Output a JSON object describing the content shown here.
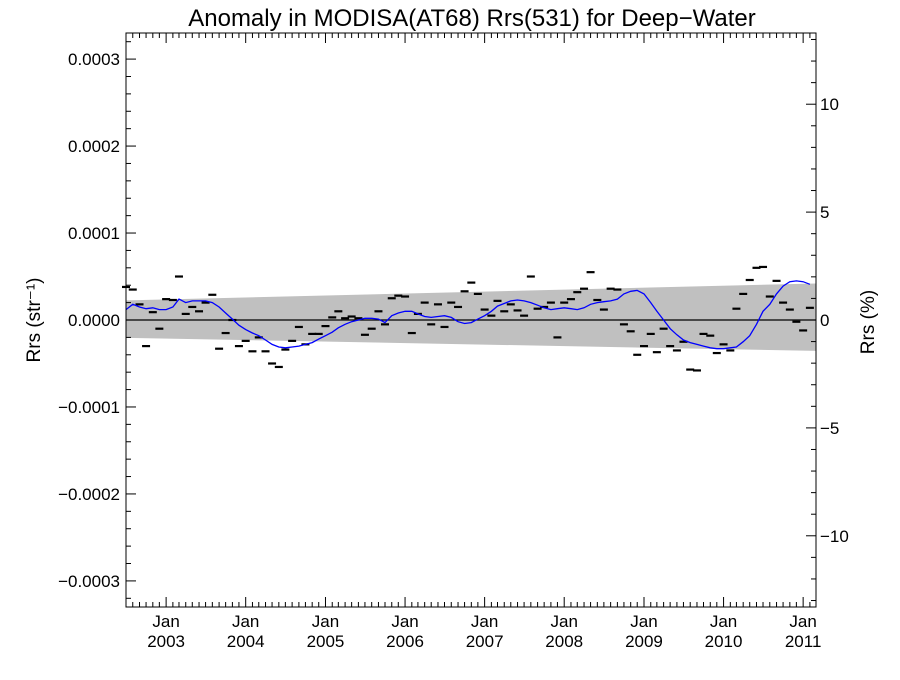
{
  "chart_data": {
    "type": "line",
    "title": "Anomaly in MODISA(AT68) Rrs(531) for Deep−Water",
    "ylabel_left": "Rrs (str⁻¹)",
    "ylabel_right": "Rrs (%)",
    "xlim": [
      "2002-07-01",
      "2011-03-01"
    ],
    "ylim_left": [
      -0.00033,
      0.00033
    ],
    "ylim_right": [
      -13.3,
      13.3
    ],
    "x_ticks": [
      {
        "month": "Jan",
        "year": "2003",
        "date": "2003-01-01"
      },
      {
        "month": "Jan",
        "year": "2004",
        "date": "2004-01-01"
      },
      {
        "month": "Jan",
        "year": "2005",
        "date": "2005-01-01"
      },
      {
        "month": "Jan",
        "year": "2006",
        "date": "2006-01-01"
      },
      {
        "month": "Jan",
        "year": "2007",
        "date": "2007-01-01"
      },
      {
        "month": "Jan",
        "year": "2008",
        "date": "2008-01-01"
      },
      {
        "month": "Jan",
        "year": "2009",
        "date": "2009-01-01"
      },
      {
        "month": "Jan",
        "year": "2010",
        "date": "2010-01-01"
      },
      {
        "month": "Jan",
        "year": "2011",
        "date": "2011-01-01"
      }
    ],
    "y_ticks_left": [
      {
        "value": 0.0003,
        "label": "0.0003"
      },
      {
        "value": 0.0002,
        "label": "0.0002"
      },
      {
        "value": 0.0001,
        "label": "0.0001"
      },
      {
        "value": 0.0,
        "label": "0.0000"
      },
      {
        "value": -0.0001,
        "label": "−0.0001"
      },
      {
        "value": -0.0002,
        "label": "−0.0002"
      },
      {
        "value": -0.0003,
        "label": "−0.0003"
      }
    ],
    "y_ticks_right": [
      {
        "value": 10,
        "label": "10"
      },
      {
        "value": 5,
        "label": "5"
      },
      {
        "value": 0,
        "label": "0"
      },
      {
        "value": -5,
        "label": "−5"
      },
      {
        "value": -10,
        "label": "−10"
      }
    ],
    "band": {
      "color": "#c0c0c0",
      "x": [
        "2002-07-01",
        "2011-03-01"
      ],
      "upper": [
        2.25e-05,
        4.2e-05
      ],
      "lower": [
        -2.05e-05,
        -3.55e-05
      ]
    },
    "zero_line": 0,
    "points": {
      "color": "#000000",
      "marker": "dash",
      "x": [
        "2002-07-01",
        "2002-08-01",
        "2002-09-01",
        "2002-10-01",
        "2002-11-01",
        "2002-12-01",
        "2003-01-01",
        "2003-02-01",
        "2003-03-01",
        "2003-04-01",
        "2003-05-01",
        "2003-06-01",
        "2003-07-01",
        "2003-08-01",
        "2003-09-01",
        "2003-10-01",
        "2003-11-01",
        "2003-12-01",
        "2004-01-01",
        "2004-02-01",
        "2004-03-01",
        "2004-04-01",
        "2004-05-01",
        "2004-06-01",
        "2004-07-01",
        "2004-08-01",
        "2004-09-01",
        "2004-10-01",
        "2004-11-01",
        "2004-12-01",
        "2005-01-01",
        "2005-02-01",
        "2005-03-01",
        "2005-04-01",
        "2005-05-01",
        "2005-06-01",
        "2005-07-01",
        "2005-08-01",
        "2005-09-01",
        "2005-10-01",
        "2005-11-01",
        "2005-12-01",
        "2006-01-01",
        "2006-02-01",
        "2006-03-01",
        "2006-04-01",
        "2006-05-01",
        "2006-06-01",
        "2006-07-01",
        "2006-08-01",
        "2006-09-01",
        "2006-10-01",
        "2006-11-01",
        "2006-12-01",
        "2007-01-01",
        "2007-02-01",
        "2007-03-01",
        "2007-04-01",
        "2007-05-01",
        "2007-06-01",
        "2007-07-01",
        "2007-08-01",
        "2007-09-01",
        "2007-10-01",
        "2007-11-01",
        "2007-12-01",
        "2008-01-01",
        "2008-02-01",
        "2008-03-01",
        "2008-04-01",
        "2008-05-01",
        "2008-06-01",
        "2008-07-01",
        "2008-08-01",
        "2008-09-01",
        "2008-10-01",
        "2008-11-01",
        "2008-12-01",
        "2009-01-01",
        "2009-02-01",
        "2009-03-01",
        "2009-04-01",
        "2009-05-01",
        "2009-06-01",
        "2009-07-01",
        "2009-08-01",
        "2009-09-01",
        "2009-10-01",
        "2009-11-01",
        "2009-12-01",
        "2010-01-01",
        "2010-02-01",
        "2010-03-01",
        "2010-04-01",
        "2010-05-01",
        "2010-06-01",
        "2010-07-01",
        "2010-08-01",
        "2010-09-01",
        "2010-10-01",
        "2010-11-01",
        "2010-12-01",
        "2011-01-01",
        "2011-02-01"
      ],
      "y": [
        3.8e-05,
        3.5e-05,
        1.8e-05,
        -3e-05,
        9e-06,
        -1e-05,
        2.4e-05,
        2.3e-05,
        5e-05,
        7e-06,
        1.5e-05,
        1e-05,
        2e-05,
        2.9e-05,
        -3.3e-05,
        -1.5e-05,
        0.0,
        -3e-05,
        -2.4e-05,
        -3.6e-05,
        -2e-05,
        -3.6e-05,
        -5e-05,
        -5.4e-05,
        -3.4e-05,
        -2.4e-05,
        -8e-06,
        -2.8e-05,
        -1.6e-05,
        -1.6e-05,
        -7e-06,
        3e-06,
        1e-05,
        2e-06,
        4e-06,
        2e-06,
        -1.7e-05,
        -1e-05,
        1e-05,
        -5e-06,
        2.5e-05,
        2.8e-05,
        2.7e-05,
        -1.5e-05,
        7e-06,
        2e-05,
        -5e-06,
        1.8e-05,
        -8e-06,
        2e-05,
        1.5e-05,
        3.3e-05,
        4.3e-05,
        3e-05,
        1.2e-05,
        5e-06,
        2.2e-05,
        1e-05,
        1.8e-05,
        1.1e-05,
        5e-06,
        5e-05,
        1.3e-05,
        1.5e-05,
        2e-05,
        -2e-05,
        2e-05,
        2.4e-05,
        3.2e-05,
        3.6e-05,
        5.5e-05,
        2.3e-05,
        1.2e-05,
        3.6e-05,
        3.5e-05,
        -5e-06,
        -1.3e-05,
        -4e-05,
        -3e-05,
        -1.6e-05,
        -3.7e-05,
        -1e-05,
        -3e-05,
        -3.5e-05,
        -2.5e-05,
        -5.7e-05,
        -5.8e-05,
        -1.6e-05,
        -1.8e-05,
        -3.8e-05,
        -2.8e-05,
        -3.5e-05,
        1.3e-05,
        3e-05,
        4.6e-05,
        6e-05,
        6.1e-05,
        2.7e-05,
        4.5e-05,
        2e-05,
        1.2e-05,
        -2e-06,
        -1.2e-05,
        1.4e-05
      ]
    },
    "series": [
      {
        "color": "#0000ff",
        "x": [
          "2002-07-01",
          "2002-08-01",
          "2002-09-01",
          "2002-10-01",
          "2002-11-01",
          "2002-12-01",
          "2003-01-01",
          "2003-02-01",
          "2003-03-01",
          "2003-04-01",
          "2003-05-01",
          "2003-06-01",
          "2003-07-01",
          "2003-08-01",
          "2003-09-01",
          "2003-10-01",
          "2003-11-01",
          "2003-12-01",
          "2004-01-01",
          "2004-02-01",
          "2004-03-01",
          "2004-04-01",
          "2004-05-01",
          "2004-06-01",
          "2004-07-01",
          "2004-08-01",
          "2004-09-01",
          "2004-10-01",
          "2004-11-01",
          "2004-12-01",
          "2005-01-01",
          "2005-02-01",
          "2005-03-01",
          "2005-04-01",
          "2005-05-01",
          "2005-06-01",
          "2005-07-01",
          "2005-08-01",
          "2005-09-01",
          "2005-10-01",
          "2005-11-01",
          "2005-12-01",
          "2006-01-01",
          "2006-02-01",
          "2006-03-01",
          "2006-04-01",
          "2006-05-01",
          "2006-06-01",
          "2006-07-01",
          "2006-08-01",
          "2006-09-01",
          "2006-10-01",
          "2006-11-01",
          "2006-12-01",
          "2007-01-01",
          "2007-02-01",
          "2007-03-01",
          "2007-04-01",
          "2007-05-01",
          "2007-06-01",
          "2007-07-01",
          "2007-08-01",
          "2007-09-01",
          "2007-10-01",
          "2007-11-01",
          "2007-12-01",
          "2008-01-01",
          "2008-02-01",
          "2008-03-01",
          "2008-04-01",
          "2008-05-01",
          "2008-06-01",
          "2008-07-01",
          "2008-08-01",
          "2008-09-01",
          "2008-10-01",
          "2008-11-01",
          "2008-12-01",
          "2009-01-01",
          "2009-02-01",
          "2009-03-01",
          "2009-04-01",
          "2009-05-01",
          "2009-06-01",
          "2009-07-01",
          "2009-08-01",
          "2009-09-01",
          "2009-10-01",
          "2009-11-01",
          "2009-12-01",
          "2010-01-01",
          "2010-02-01",
          "2010-03-01",
          "2010-04-01",
          "2010-05-01",
          "2010-06-01",
          "2010-07-01",
          "2010-08-01",
          "2010-09-01",
          "2010-10-01",
          "2010-11-01",
          "2010-12-01",
          "2011-01-01",
          "2011-02-01"
        ],
        "y": [
          1.2e-05,
          1.8e-05,
          1.5e-05,
          1.3e-05,
          1.4e-05,
          1.2e-05,
          1.2e-05,
          1.5e-05,
          2.4e-05,
          2e-05,
          2.2e-05,
          2.2e-05,
          2.2e-05,
          2e-05,
          1.5e-05,
          8e-06,
          1e-06,
          -6e-06,
          -1.1e-05,
          -1.5e-05,
          -1.8e-05,
          -2.3e-05,
          -2.8e-05,
          -3.1e-05,
          -3.2e-05,
          -3.1e-05,
          -3e-05,
          -2.8e-05,
          -2.6e-05,
          -2.2e-05,
          -1.8e-05,
          -1.4e-05,
          -9e-06,
          -5e-06,
          -2e-06,
          0.0,
          2e-06,
          2e-06,
          1e-06,
          -3e-06,
          5e-06,
          8e-06,
          1e-05,
          1e-05,
          7e-06,
          4e-06,
          3e-06,
          4e-06,
          5e-06,
          3e-06,
          -2e-06,
          -4e-06,
          -3e-06,
          1e-06,
          5e-06,
          1e-05,
          1.6e-05,
          1.9e-05,
          2.2e-05,
          2.3e-05,
          2.2e-05,
          2e-05,
          1.7e-05,
          1.4e-05,
          1.2e-05,
          1.3e-05,
          1.4e-05,
          1.3e-05,
          1.2e-05,
          1.4e-05,
          1.8e-05,
          2e-05,
          2.1e-05,
          2.2e-05,
          2.4e-05,
          3e-05,
          3.3e-05,
          3.4e-05,
          3e-05,
          2e-05,
          1e-05,
          0.0,
          -1e-05,
          -1.7e-05,
          -2.3e-05,
          -2.6e-05,
          -2.8e-05,
          -3e-05,
          -3.2e-05,
          -3.3e-05,
          -3.3e-05,
          -3.2e-05,
          -3.1e-05,
          -2.5e-05,
          -1.8e-05,
          -5e-06,
          1e-05,
          1.8e-05,
          3e-05,
          3.9e-05,
          4.4e-05,
          4.5e-05,
          4.4e-05,
          4.1e-05
        ]
      }
    ]
  }
}
